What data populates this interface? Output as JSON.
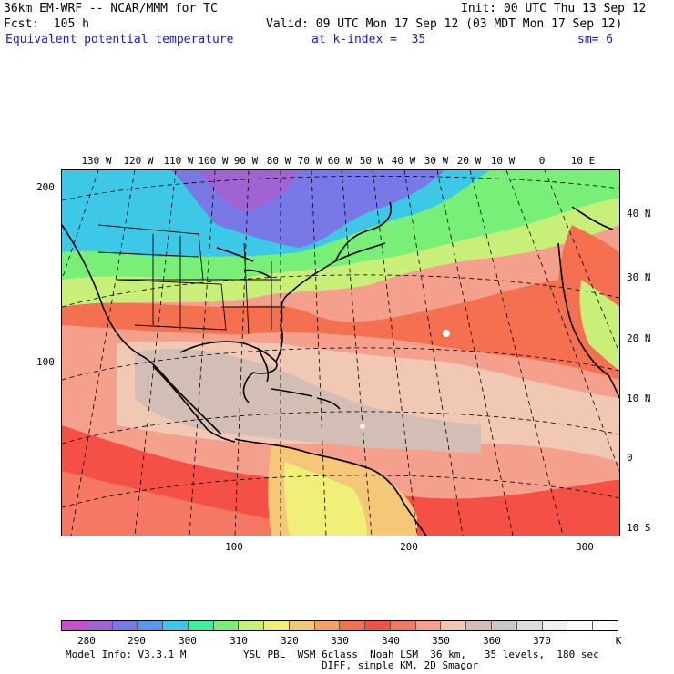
{
  "header": {
    "model": "36km EM-WRF -- NCAR/MMM for TC",
    "init": "Init: 00 UTC Thu 13 Sep 12",
    "fcst": "Fcst:  105 h",
    "valid": "Valid: 09 UTC Mon 17 Sep 12 (03 MDT Mon 17 Sep 12)",
    "field": "Equivalent potential temperature",
    "level": "at k-index =  35",
    "smooth": "sm= 6"
  },
  "map": {
    "top_lon_labels": [
      "130 W",
      "120 W",
      "110 W",
      "100 W",
      "90 W",
      "80 W",
      "70 W",
      "60 W",
      "50 W",
      "40 W",
      "30 W",
      "20 W",
      "10 W",
      "0",
      "10 E"
    ],
    "right_lat_labels": [
      "40 N",
      "30 N",
      "20 N",
      "10 N",
      "0",
      "10 S"
    ],
    "left_grid_labels": [
      "200",
      "100"
    ],
    "bottom_grid_labels": [
      "100",
      "200",
      "300"
    ]
  },
  "colorbar": {
    "colors": [
      "#c850c8",
      "#a064d2",
      "#7878e6",
      "#5a96f0",
      "#3cc8e6",
      "#3cf0a0",
      "#78f078",
      "#c8f078",
      "#f0f078",
      "#f5c878",
      "#f5a064",
      "#f57050",
      "#f55046",
      "#f57864",
      "#f5a08c",
      "#f0c8b4",
      "#d2beb4",
      "#c8c8c8",
      "#dcdcdc",
      "#f0f0f0",
      "#fafafa",
      "#ffffff"
    ],
    "labels": [
      "280",
      "290",
      "300",
      "310",
      "320",
      "330",
      "340",
      "350",
      "360",
      "370"
    ],
    "unit": "K"
  },
  "footer": {
    "model_info": "Model Info: V3.3.1 M",
    "physics": "YSU PBL  WSM 6class  Noah LSM  36 km,   35 levels,  180 sec",
    "diff": "DIFF, simple KM, 2D Smagor"
  }
}
